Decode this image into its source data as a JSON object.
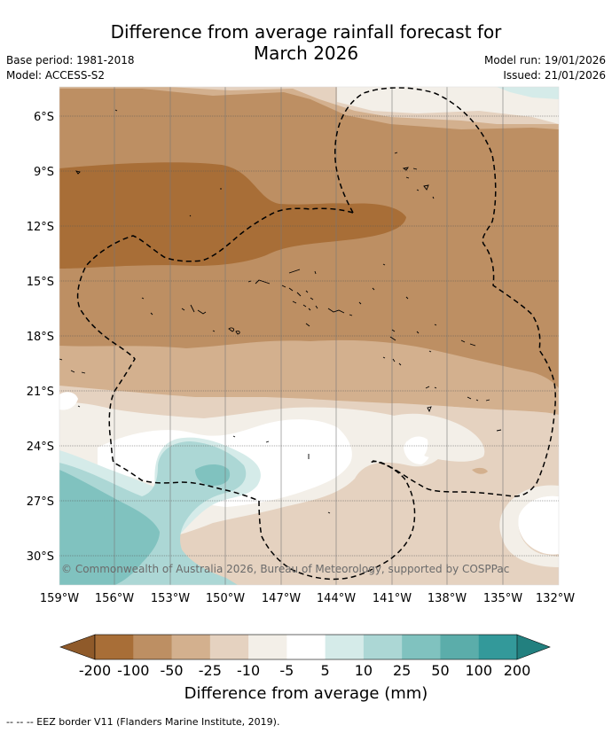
{
  "title_line1": "Difference from average rainfall forecast for",
  "title_line2": "March 2026",
  "base_period": "Base period: 1981-2018",
  "model": "Model: ACCESS-S2",
  "model_run": "Model run: 19/01/2026",
  "issued": "Issued: 21/01/2026",
  "lat_labels": [
    "6°S",
    "9°S",
    "12°S",
    "15°S",
    "18°S",
    "21°S",
    "24°S",
    "27°S",
    "30°S"
  ],
  "lon_labels": [
    "159°W",
    "156°W",
    "153°W",
    "150°W",
    "147°W",
    "144°W",
    "141°W",
    "138°W",
    "135°W",
    "132°W"
  ],
  "copyright": "© Commonwealth of Australia 2026, Bureau of Meteorology, supported by COSPPac",
  "colorbar": {
    "ticks": [
      "-200",
      "-100",
      "-50",
      "-25",
      "-10",
      "-5",
      "5",
      "10",
      "25",
      "50",
      "100",
      "200"
    ],
    "colors": [
      "#a86e37",
      "#bd8f63",
      "#d3b08e",
      "#e5d2c0",
      "#f3efe8",
      "#ffffff",
      "#d5ebe9",
      "#acd7d5",
      "#80c2bf",
      "#5badaa",
      "#33999a"
    ],
    "under_color": "#8f5a2a",
    "over_color": "#22807f",
    "label": "Difference from average (mm)"
  },
  "legend_footer": "--  --  -- EEZ border V11 (Flanders Marine Institute, 2019)."
}
